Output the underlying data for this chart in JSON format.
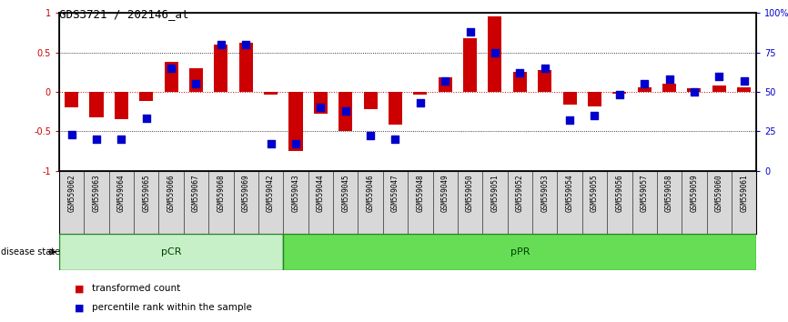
{
  "title": "GDS3721 / 202146_at",
  "samples": [
    "GSM559062",
    "GSM559063",
    "GSM559064",
    "GSM559065",
    "GSM559066",
    "GSM559067",
    "GSM559068",
    "GSM559069",
    "GSM559042",
    "GSM559043",
    "GSM559044",
    "GSM559045",
    "GSM559046",
    "GSM559047",
    "GSM559048",
    "GSM559049",
    "GSM559050",
    "GSM559051",
    "GSM559052",
    "GSM559053",
    "GSM559054",
    "GSM559055",
    "GSM559056",
    "GSM559057",
    "GSM559058",
    "GSM559059",
    "GSM559060",
    "GSM559061"
  ],
  "transformed_count": [
    -0.2,
    -0.32,
    -0.35,
    -0.12,
    0.38,
    0.3,
    0.6,
    0.62,
    -0.04,
    -0.75,
    -0.28,
    -0.5,
    -0.22,
    -0.42,
    -0.04,
    0.18,
    0.68,
    0.95,
    0.25,
    0.28,
    -0.16,
    -0.18,
    -0.02,
    0.06,
    0.1,
    0.04,
    0.08,
    0.06
  ],
  "percentile_rank": [
    23,
    20,
    20,
    33,
    65,
    55,
    80,
    80,
    17,
    17,
    40,
    38,
    22,
    20,
    43,
    57,
    88,
    75,
    62,
    65,
    32,
    35,
    48,
    55,
    58,
    50,
    60,
    57
  ],
  "group_labels": [
    "pCR",
    "pPR"
  ],
  "group_sizes": [
    9,
    19
  ],
  "pcr_color": "#c8f0c8",
  "ppr_color": "#66dd55",
  "bar_color": "#cc0000",
  "dot_color": "#0000cc",
  "background_color": "#ffffff",
  "ylim": [
    -1,
    1
  ],
  "left_ticks": [
    -1,
    -0.5,
    0,
    0.5,
    1
  ],
  "left_tick_labels": [
    "-1",
    "-0.5",
    "0",
    "0.5",
    "1"
  ],
  "right_ticks": [
    0,
    25,
    50,
    75,
    100
  ],
  "right_tick_labels": [
    "0",
    "25",
    "50",
    "75",
    "100%"
  ],
  "legend_items": [
    "transformed count",
    "percentile rank within the sample"
  ],
  "disease_state_label": "disease state"
}
